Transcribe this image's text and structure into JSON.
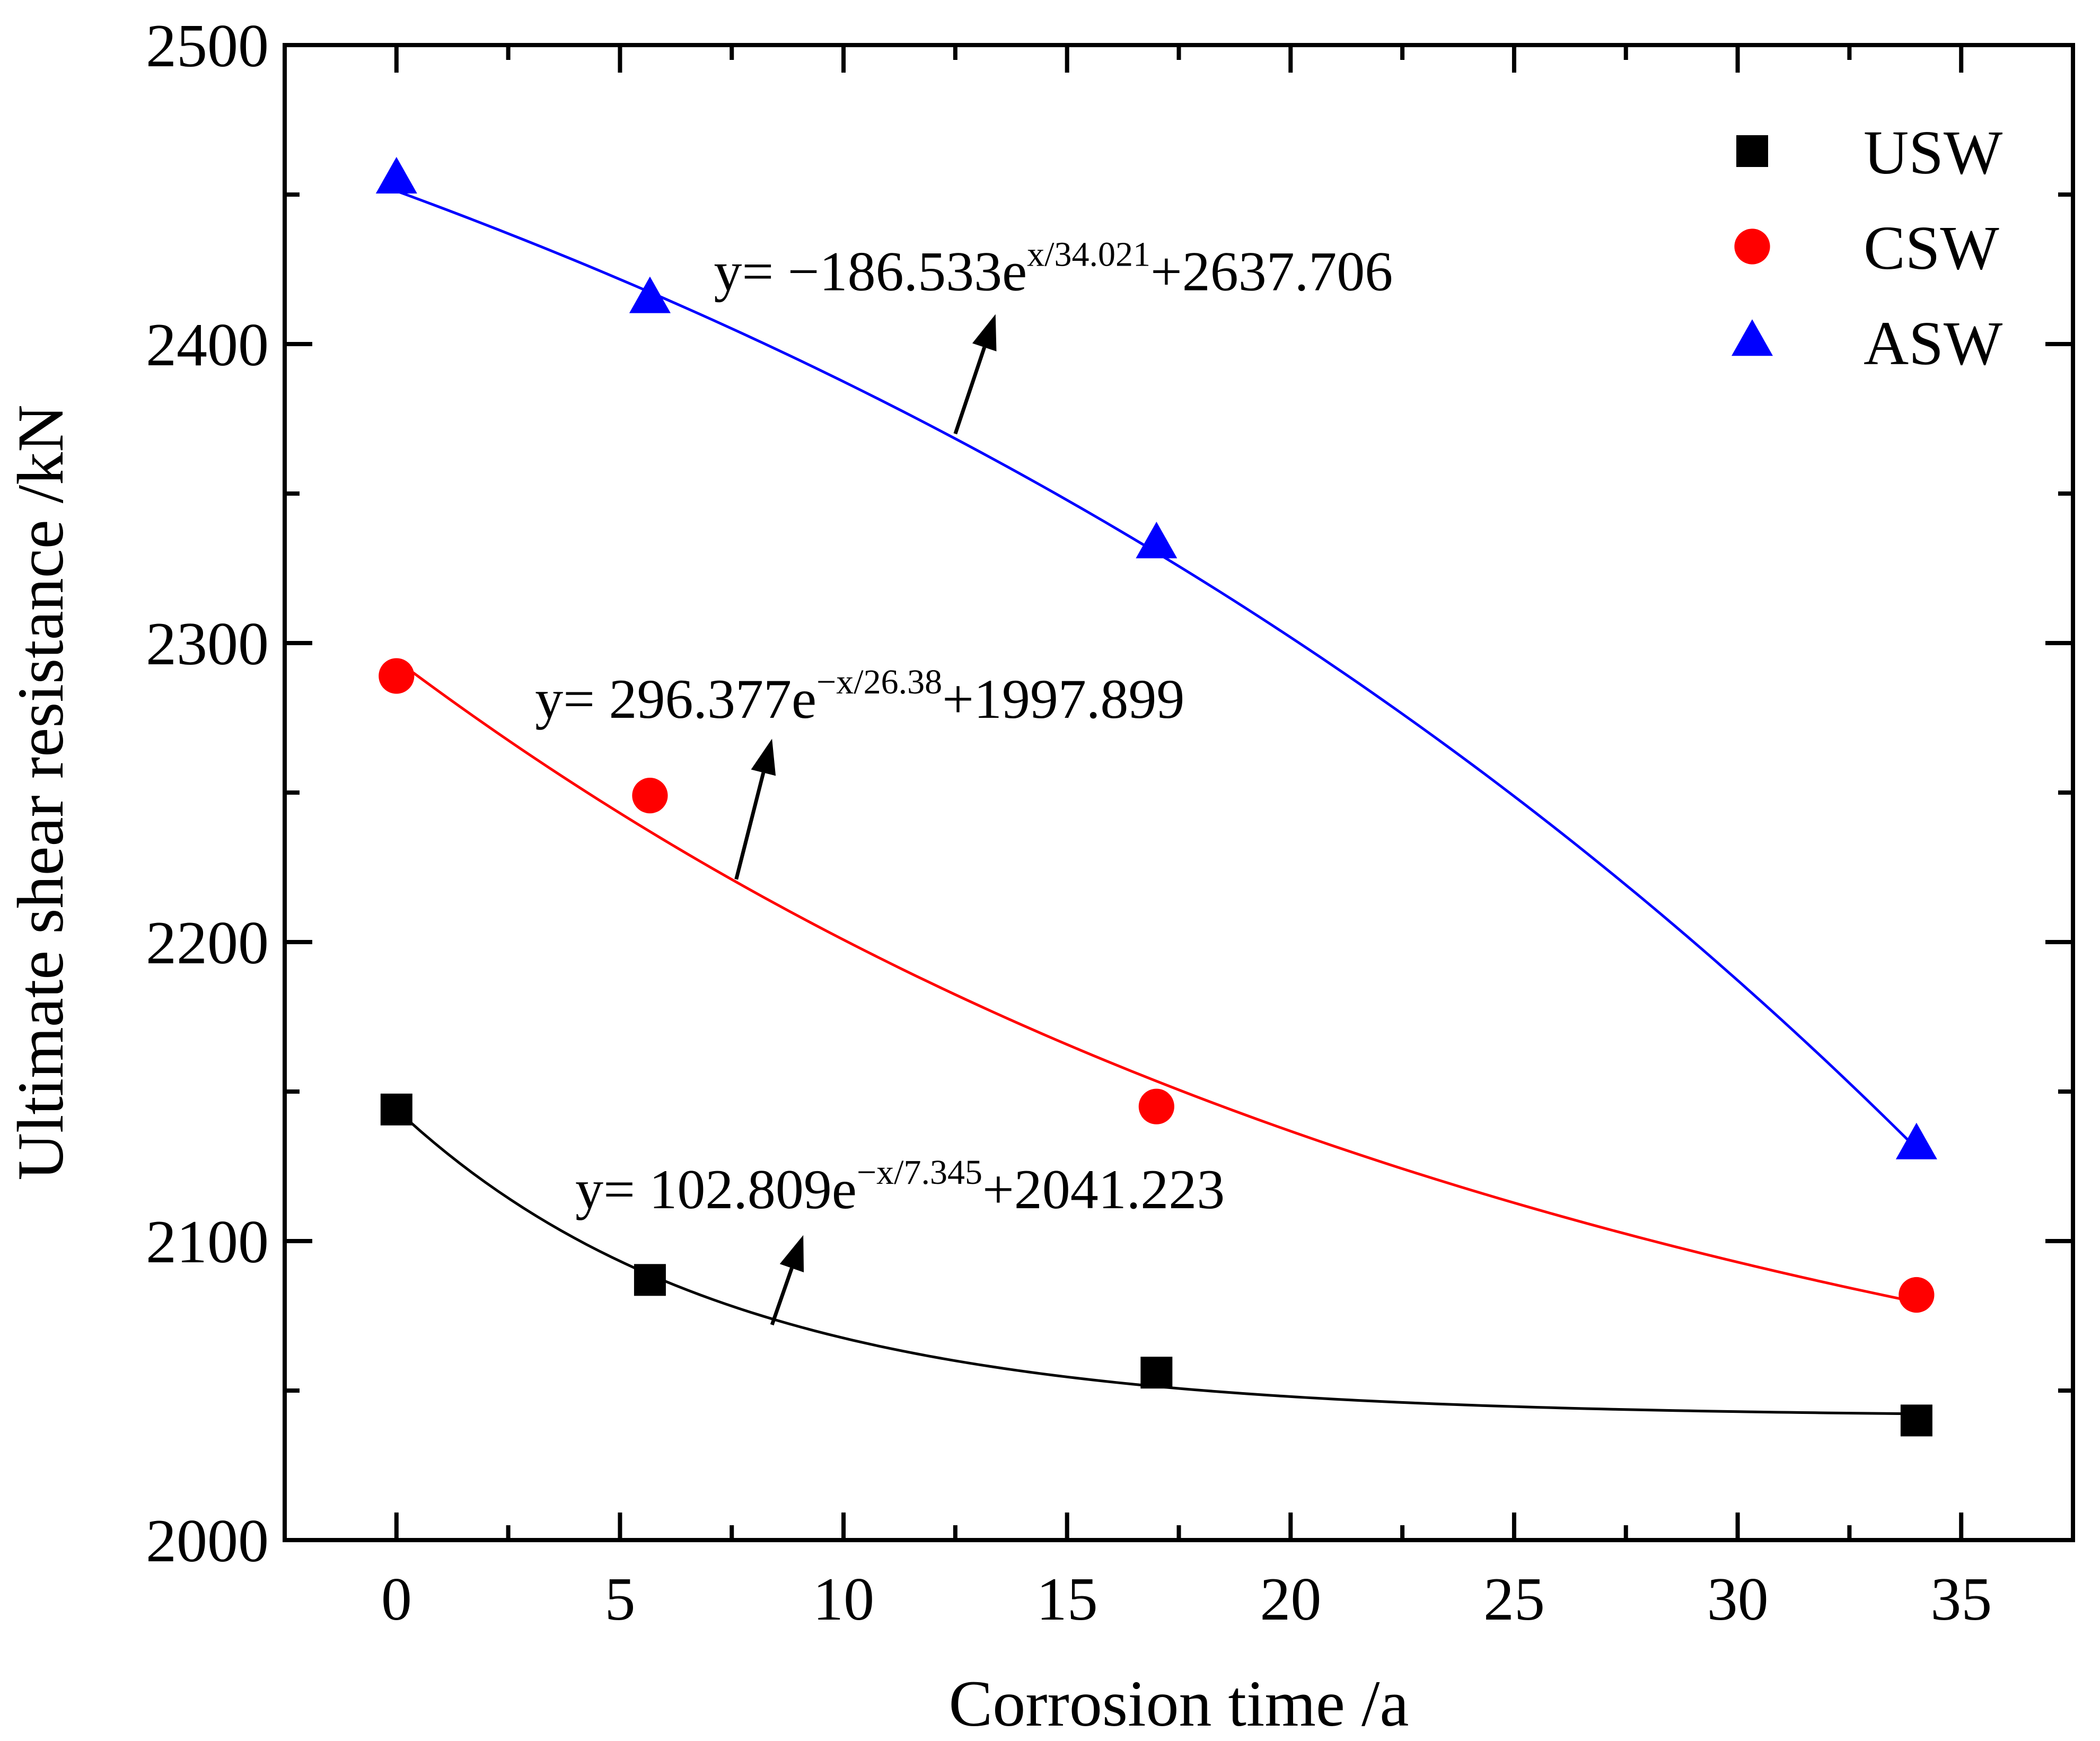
{
  "chart_data": {
    "type": "scatter",
    "xlabel": "Corrosion time /a",
    "ylabel": "Ultimate shear resistance /kN",
    "xlim": [
      -2.5,
      37.5
    ],
    "ylim": [
      2000,
      2500
    ],
    "xticks": [
      0,
      5,
      10,
      15,
      20,
      25,
      30,
      35
    ],
    "xticks_minor": [
      2.5,
      7.5,
      12.5,
      17.5,
      22.5,
      27.5,
      32.5
    ],
    "yticks": [
      2000,
      2100,
      2200,
      2300,
      2400,
      2500
    ],
    "yticks_minor": [
      2050,
      2150,
      2250,
      2350,
      2450
    ],
    "xtick_labels": [
      "0",
      "5",
      "10",
      "15",
      "20",
      "25",
      "30",
      "35"
    ],
    "ytick_labels": [
      "2000",
      "2100",
      "2200",
      "2300",
      "2400",
      "2500"
    ],
    "legend_position": "top-right",
    "grid": false,
    "series": [
      {
        "name": "USW",
        "color": "#000000",
        "marker": "square",
        "x": [
          0,
          5.67,
          17,
          34
        ],
        "y": [
          2144,
          2087,
          2056,
          2040
        ],
        "fit": {
          "type": "exp",
          "a": 102.809,
          "t": -7.345,
          "y0": 2041.223
        },
        "equation": {
          "prefix": "y= 102.809e",
          "exponent": "−x/7.345",
          "suffix": "+2041.223",
          "anchor": {
            "x": 4.0,
            "y": 2111
          },
          "arrow_tail": {
            "x": 8.4,
            "y": 2072
          },
          "arrow_head": {
            "x": 9.1,
            "y": 2102
          }
        }
      },
      {
        "name": "CSW",
        "color": "#ff0000",
        "marker": "circle",
        "x": [
          0,
          5.67,
          17,
          34
        ],
        "y": [
          2289,
          2249,
          2145,
          2082
        ],
        "fit": {
          "type": "exp",
          "a": 296.377,
          "t": -26.38,
          "y0": 1997.899
        },
        "equation": {
          "prefix": "y= 296.377e",
          "exponent": "−x/26.38",
          "suffix": "+1997.899",
          "anchor": {
            "x": 3.1,
            "y": 2275
          },
          "arrow_tail": {
            "x": 7.6,
            "y": 2221
          },
          "arrow_head": {
            "x": 8.4,
            "y": 2268
          }
        }
      },
      {
        "name": "ASW",
        "color": "#0000ff",
        "marker": "triangle",
        "x": [
          0,
          5.67,
          17,
          34
        ],
        "y": [
          2455,
          2415,
          2333,
          2132
        ],
        "fit": {
          "type": "exp",
          "a": -186.533,
          "t": 34.021,
          "y0": 2637.706
        },
        "equation": {
          "prefix": "y= −186.533e",
          "exponent": "x/34.021",
          "suffix": "+2637.706",
          "anchor": {
            "x": 7.1,
            "y": 2418
          },
          "arrow_tail": {
            "x": 12.5,
            "y": 2370
          },
          "arrow_head": {
            "x": 13.4,
            "y": 2410
          }
        }
      }
    ]
  }
}
